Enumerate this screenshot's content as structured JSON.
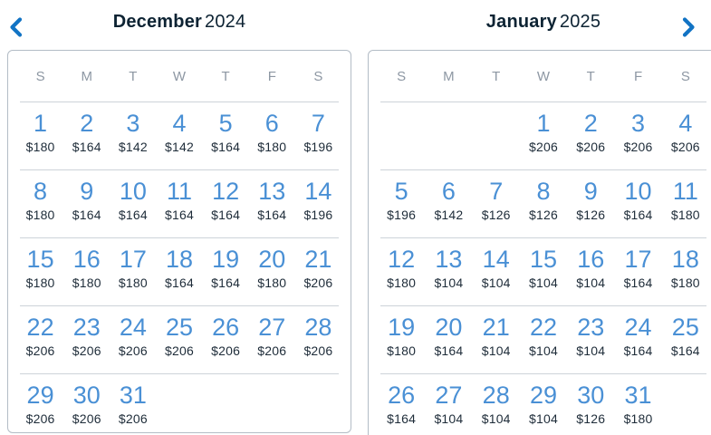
{
  "icons": {
    "prev": "chevron-left",
    "next": "chevron-right"
  },
  "colors": {
    "title_navy": "#0d2333",
    "date_blue": "#4a90d5",
    "price_navy": "#1e2c39",
    "weekday_gray": "#8d97a3",
    "chevron_blue": "#1173c4",
    "panel_border": "#b3bcc6",
    "row_divider": "#cdd3d9"
  },
  "months": [
    {
      "name": "December",
      "year": "2024",
      "dow": [
        "S",
        "M",
        "T",
        "W",
        "T",
        "F",
        "S"
      ],
      "weeks": [
        [
          {
            "day": "1",
            "price": "$180"
          },
          {
            "day": "2",
            "price": "$164"
          },
          {
            "day": "3",
            "price": "$142"
          },
          {
            "day": "4",
            "price": "$142"
          },
          {
            "day": "5",
            "price": "$164"
          },
          {
            "day": "6",
            "price": "$180"
          },
          {
            "day": "7",
            "price": "$196"
          }
        ],
        [
          {
            "day": "8",
            "price": "$180"
          },
          {
            "day": "9",
            "price": "$164"
          },
          {
            "day": "10",
            "price": "$164"
          },
          {
            "day": "11",
            "price": "$164"
          },
          {
            "day": "12",
            "price": "$164"
          },
          {
            "day": "13",
            "price": "$164"
          },
          {
            "day": "14",
            "price": "$196"
          }
        ],
        [
          {
            "day": "15",
            "price": "$180"
          },
          {
            "day": "16",
            "price": "$180"
          },
          {
            "day": "17",
            "price": "$180"
          },
          {
            "day": "18",
            "price": "$164"
          },
          {
            "day": "19",
            "price": "$164"
          },
          {
            "day": "20",
            "price": "$180"
          },
          {
            "day": "21",
            "price": "$206"
          }
        ],
        [
          {
            "day": "22",
            "price": "$206"
          },
          {
            "day": "23",
            "price": "$206"
          },
          {
            "day": "24",
            "price": "$206"
          },
          {
            "day": "25",
            "price": "$206"
          },
          {
            "day": "26",
            "price": "$206"
          },
          {
            "day": "27",
            "price": "$206"
          },
          {
            "day": "28",
            "price": "$206"
          }
        ],
        [
          {
            "day": "29",
            "price": "$206"
          },
          {
            "day": "30",
            "price": "$206"
          },
          {
            "day": "31",
            "price": "$206"
          },
          null,
          null,
          null,
          null
        ]
      ]
    },
    {
      "name": "January",
      "year": "2025",
      "dow": [
        "S",
        "M",
        "T",
        "W",
        "T",
        "F",
        "S"
      ],
      "weeks": [
        [
          null,
          null,
          null,
          {
            "day": "1",
            "price": "$206"
          },
          {
            "day": "2",
            "price": "$206"
          },
          {
            "day": "3",
            "price": "$206"
          },
          {
            "day": "4",
            "price": "$206"
          }
        ],
        [
          {
            "day": "5",
            "price": "$196"
          },
          {
            "day": "6",
            "price": "$142"
          },
          {
            "day": "7",
            "price": "$126"
          },
          {
            "day": "8",
            "price": "$126"
          },
          {
            "day": "9",
            "price": "$126"
          },
          {
            "day": "10",
            "price": "$164"
          },
          {
            "day": "11",
            "price": "$180"
          }
        ],
        [
          {
            "day": "12",
            "price": "$180"
          },
          {
            "day": "13",
            "price": "$104"
          },
          {
            "day": "14",
            "price": "$104"
          },
          {
            "day": "15",
            "price": "$104"
          },
          {
            "day": "16",
            "price": "$104"
          },
          {
            "day": "17",
            "price": "$164"
          },
          {
            "day": "18",
            "price": "$180"
          }
        ],
        [
          {
            "day": "19",
            "price": "$180"
          },
          {
            "day": "20",
            "price": "$164"
          },
          {
            "day": "21",
            "price": "$104"
          },
          {
            "day": "22",
            "price": "$104"
          },
          {
            "day": "23",
            "price": "$104"
          },
          {
            "day": "24",
            "price": "$164"
          },
          {
            "day": "25",
            "price": "$164"
          }
        ],
        [
          {
            "day": "26",
            "price": "$164"
          },
          {
            "day": "27",
            "price": "$104"
          },
          {
            "day": "28",
            "price": "$104"
          },
          {
            "day": "29",
            "price": "$104"
          },
          {
            "day": "30",
            "price": "$126"
          },
          {
            "day": "31",
            "price": "$180"
          },
          null
        ]
      ]
    }
  ]
}
